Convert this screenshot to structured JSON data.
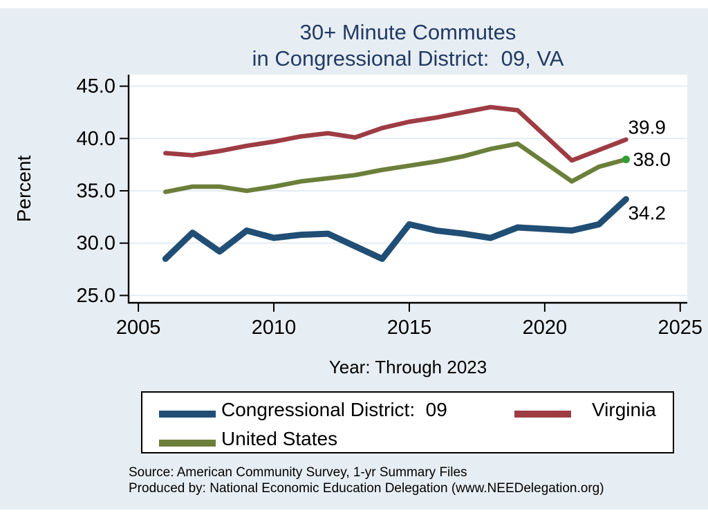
{
  "title": {
    "line1": "30+ Minute Commutes",
    "line2": "in Congressional District:  09, VA"
  },
  "chart_data": {
    "type": "line",
    "x": [
      2006,
      2007,
      2008,
      2009,
      2010,
      2011,
      2012,
      2013,
      2014,
      2015,
      2016,
      2017,
      2018,
      2019,
      2021,
      2022,
      2023
    ],
    "series": [
      {
        "name": "Congressional District:  09",
        "slug": "congressional-district-09",
        "color": "#204e74",
        "line_width": 9,
        "values": [
          28.5,
          31.0,
          29.2,
          31.2,
          30.5,
          30.8,
          30.9,
          29.7,
          28.5,
          31.8,
          31.2,
          30.9,
          30.5,
          31.5,
          31.2,
          31.8,
          34.2
        ],
        "end_label": "34.2"
      },
      {
        "name": "Virginia",
        "slug": "virginia",
        "color": "#9e3c43",
        "line_width": 6.5,
        "values": [
          38.6,
          38.4,
          38.8,
          39.3,
          39.7,
          40.2,
          40.5,
          40.1,
          41.0,
          41.6,
          42.0,
          42.5,
          43.0,
          42.7,
          37.9,
          38.9,
          39.9
        ],
        "end_label": "39.9"
      },
      {
        "name": "United States",
        "slug": "united-states",
        "color": "#6b7f3a",
        "line_width": 6.5,
        "values": [
          34.9,
          35.4,
          35.4,
          35.0,
          35.4,
          35.9,
          36.2,
          36.5,
          37.0,
          37.4,
          37.8,
          38.3,
          39.0,
          39.5,
          35.9,
          37.3,
          38.0
        ],
        "end_label": "38.0",
        "end_marker_color": "#2f9e2f"
      }
    ],
    "xlabel": "Year: Through 2023",
    "ylabel": "Percent",
    "xticks": [
      2005,
      2010,
      2015,
      2020,
      2025
    ],
    "yticks": [
      45,
      40,
      35,
      30,
      25
    ],
    "xlim": [
      2004.64,
      2025.26
    ],
    "ylim": [
      24.3,
      46.1
    ],
    "grid": true,
    "grid_color": "#dde9f2",
    "plot_bg": "#ffffff",
    "axis_color": "#000000",
    "legend_position": "bottom"
  },
  "footer": {
    "line1": "Source: American Community Survey, 1-yr Summary Files",
    "line2": "Produced by: National Economic Education Delegation (www.NEEDelegation.org)"
  },
  "colors": {
    "background": "#e7eef3",
    "title": "#223a64"
  }
}
